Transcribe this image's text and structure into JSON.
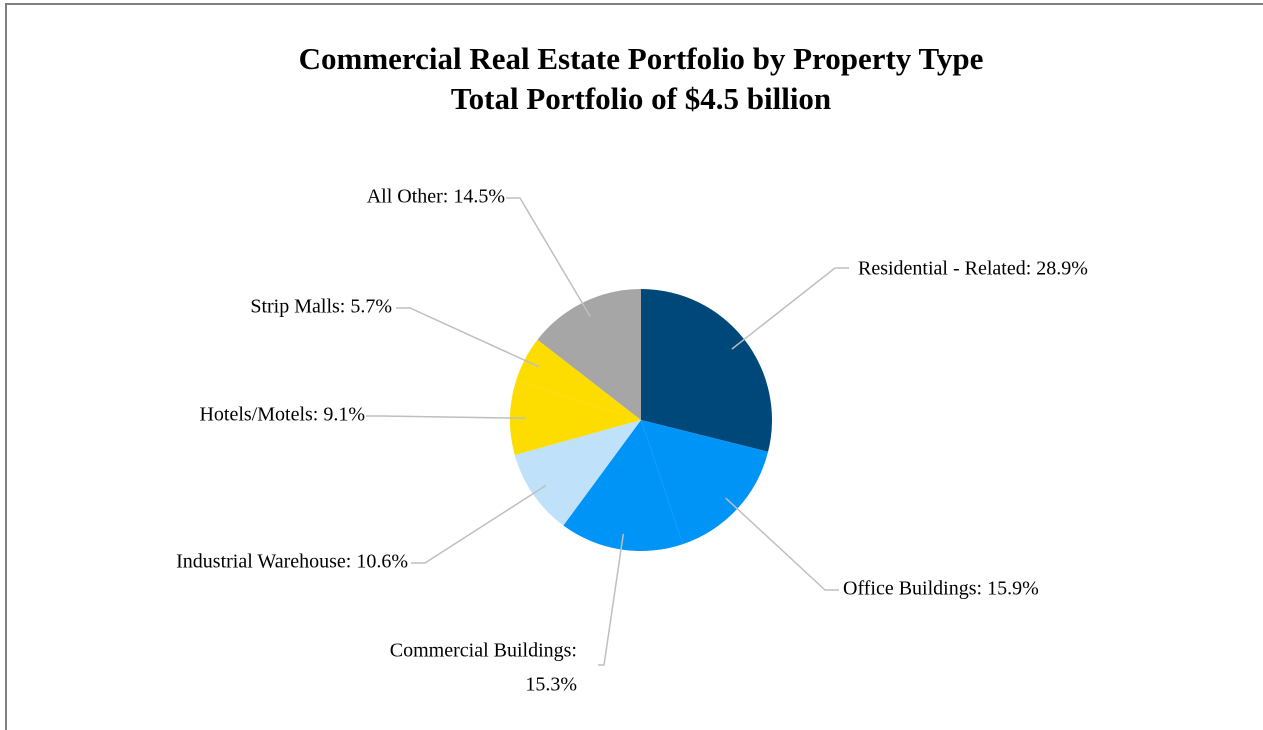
{
  "chart_data": {
    "type": "pie",
    "title": "Commercial Real Estate Portfolio by Property Type",
    "subtitle": "Total Portfolio of $4.5 billion",
    "labels": [
      [
        "Residential - Related: 28.9%"
      ],
      [
        "Office Buildings: 15.9%"
      ],
      [
        "Commercial Buildings:",
        "15.3%"
      ],
      [
        "Industrial Warehouse: 10.6%"
      ],
      [
        "Hotels/Motels: 9.1%"
      ],
      [
        "Strip Malls: 5.7%"
      ],
      [
        "All Other: 14.5%"
      ]
    ],
    "values": [
      28.9,
      15.9,
      15.3,
      10.6,
      9.1,
      5.7,
      14.5
    ],
    "colors": [
      "#00477a",
      "#0094f7",
      "#0094f7",
      "#bfe2fa",
      "#fddc00",
      "#fddc00",
      "#a6a6a6"
    ]
  }
}
